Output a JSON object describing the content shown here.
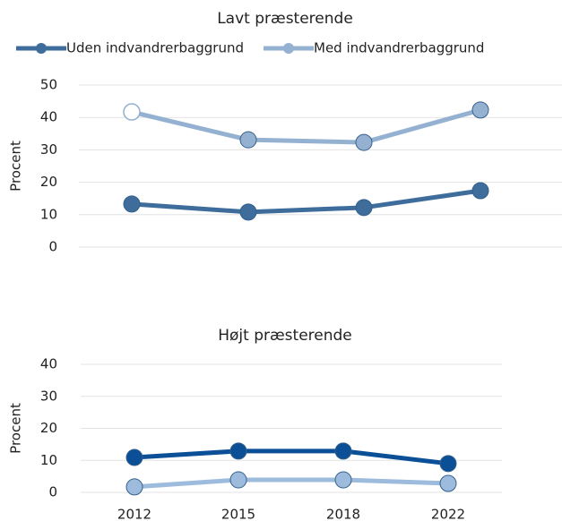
{
  "chart_data": [
    {
      "type": "line",
      "title": "Lavt præsterende",
      "y_label": "Procent",
      "categories": [
        null,
        null,
        null,
        null
      ],
      "series": [
        {
          "name": "Uden indvandrerbaggrund",
          "color": "#3e6d9c",
          "values": [
            13.3,
            10.8,
            12.2,
            17.4
          ]
        },
        {
          "name": "Med indvandrerbaggrund",
          "color": "#94b1d1",
          "values": [
            41.7,
            33.1,
            32.3,
            42.3
          ],
          "hollow_markers": [
            0
          ]
        }
      ],
      "ylim": [
        0,
        50
      ],
      "yticks": [
        0,
        10,
        20,
        30,
        40,
        50
      ],
      "grid": true,
      "legend": "top"
    },
    {
      "type": "line",
      "title": "Højt præsterende",
      "y_label": "Procent",
      "categories": [
        "2012",
        "2015",
        "2018",
        "2022"
      ],
      "series": [
        {
          "color": "#0b4f96",
          "values": [
            10.9,
            12.9,
            12.9,
            9.0
          ]
        },
        {
          "color": "#9dbbdc",
          "values": [
            1.7,
            3.9,
            3.9,
            2.8
          ]
        }
      ],
      "ylim": [
        0,
        40
      ],
      "yticks": [
        0,
        10,
        20,
        30,
        40
      ],
      "grid": true
    }
  ]
}
